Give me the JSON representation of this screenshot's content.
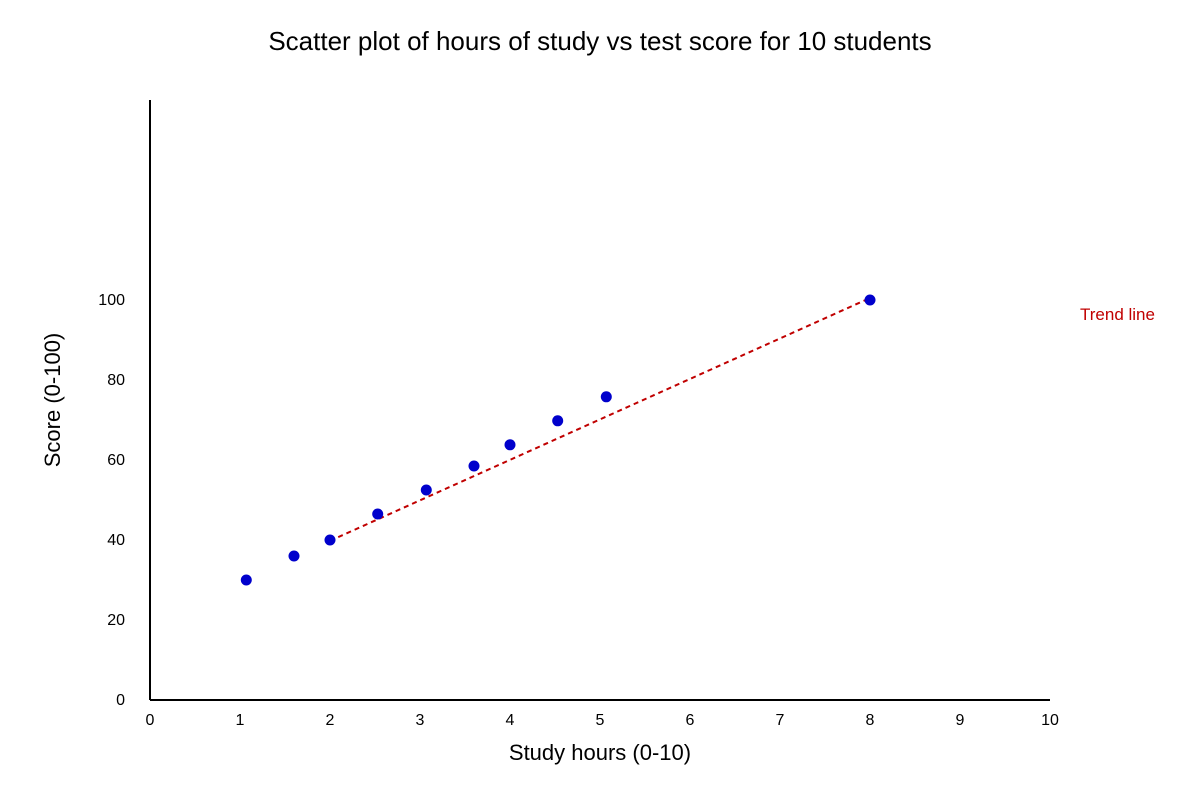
{
  "chart_data": {
    "type": "scatter",
    "title": "Scatter plot of hours of study vs test score for 10 students",
    "xlabel": "Study hours (0-10)",
    "ylabel": "Score (0-100)",
    "xlim": [
      0,
      10
    ],
    "ylim": [
      0,
      150
    ],
    "x_ticks": [
      "0",
      "1",
      "2",
      "3",
      "4",
      "5",
      "6",
      "7",
      "8",
      "9",
      "10"
    ],
    "y_ticks": [
      "0",
      "20",
      "40",
      "60",
      "80",
      "100"
    ],
    "grid": false,
    "points": [
      {
        "x": 1.07,
        "y": 30
      },
      {
        "x": 1.6,
        "y": 36
      },
      {
        "x": 2.0,
        "y": 40
      },
      {
        "x": 2.53,
        "y": 46.5
      },
      {
        "x": 3.07,
        "y": 52.5
      },
      {
        "x": 3.6,
        "y": 58.5
      },
      {
        "x": 4.0,
        "y": 63.8
      },
      {
        "x": 4.53,
        "y": 69.8
      },
      {
        "x": 5.07,
        "y": 75.8
      },
      {
        "x": 8.0,
        "y": 100
      }
    ],
    "trend_line": {
      "label": "Trend line",
      "x": [
        2.0,
        8.0
      ],
      "y": [
        39.8,
        100.5
      ]
    },
    "colors": {
      "points": "#0000cc",
      "trend": "#c00000",
      "axis": "#000000"
    }
  }
}
